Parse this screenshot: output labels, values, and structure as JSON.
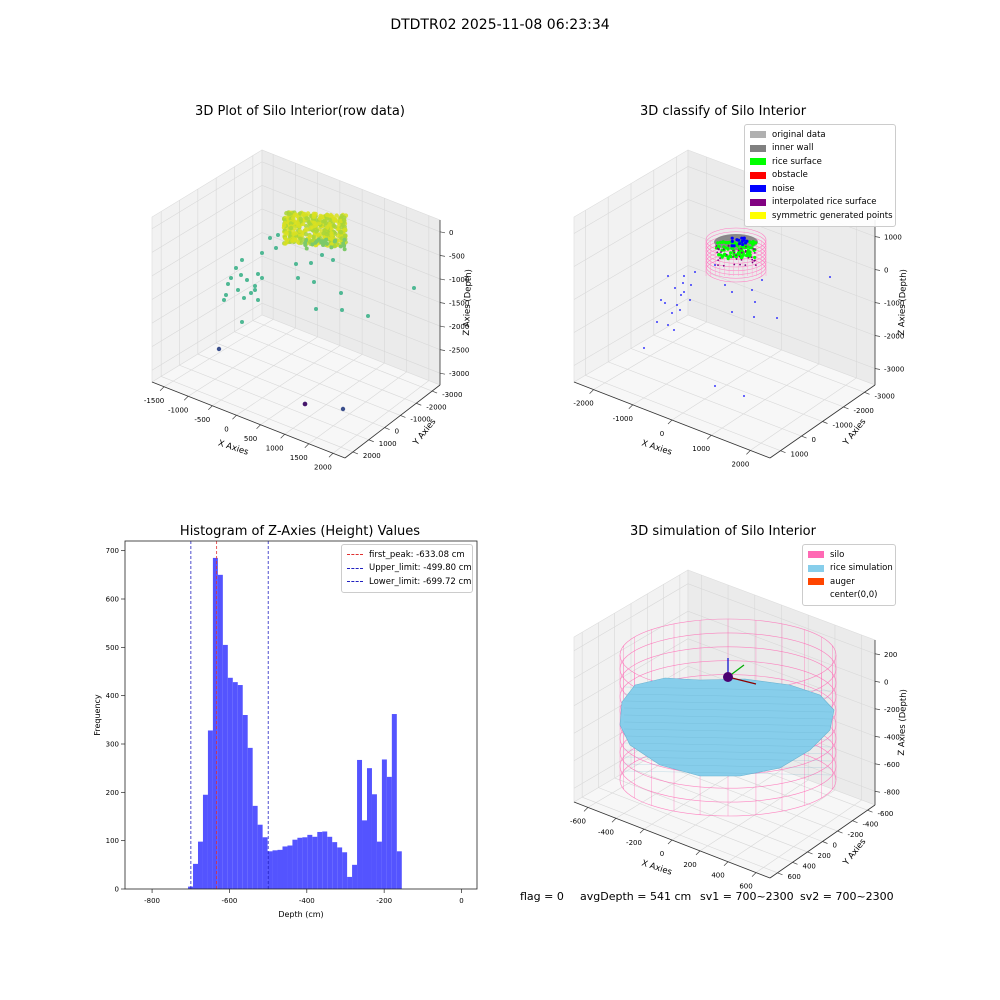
{
  "suptitle": "DTDTR02 2025-11-08 06:23:34",
  "footer": {
    "flag": "flag = 0",
    "avg_depth": "avgDepth = 541 cm",
    "sv1": "sv1 = 700~2300",
    "sv2": "sv2 = 700~2300"
  },
  "chart_data": [
    {
      "type": "scatter",
      "title": "3D Plot of Silo Interior(row data)",
      "xlabel": "X Axies",
      "ylabel": "Y Axies",
      "zlabel": "Z Axies (Depth)",
      "x_ticks": [
        "-1500",
        "-1000",
        "-500",
        "0",
        "500",
        "1000",
        "1500",
        "2000"
      ],
      "y_ticks": [
        "-3000",
        "-2000",
        "-1000",
        "0",
        "1000",
        "2000"
      ],
      "z_ticks": [
        "0",
        "-500",
        "-1000",
        "-1500",
        "-2000",
        "-2500",
        "-3000"
      ],
      "colors": {
        "high": "#d9e021",
        "mid": "#4fb894",
        "low": "#3b4f8c",
        "deep": "#46166b"
      }
    },
    {
      "type": "scatter",
      "title": "3D classify of Silo Interior",
      "xlabel": "X Axies",
      "ylabel": "Y Axies",
      "zlabel": "Z Axies (Depth)",
      "x_ticks": [
        "-2000",
        "-1000",
        "0",
        "1000",
        "2000"
      ],
      "y_ticks": [
        "-3000",
        "-2000",
        "-1000",
        "0",
        "1000"
      ],
      "z_ticks": [
        "1000",
        "0",
        "-1000",
        "-2000",
        "-3000"
      ],
      "legend": [
        {
          "label": "original data",
          "color": "#b0b0b0"
        },
        {
          "label": "inner wall",
          "color": "#808080"
        },
        {
          "label": "rice surface",
          "color": "#00ff00"
        },
        {
          "label": "obstacle",
          "color": "#ff0000"
        },
        {
          "label": "noise",
          "color": "#0000ff"
        },
        {
          "label": "interpolated rice surface",
          "color": "#800080"
        },
        {
          "label": "symmetric generated points",
          "color": "#ffff00"
        }
      ]
    },
    {
      "type": "bar",
      "title": "Histogram of Z-Axies (Height) Values",
      "xlabel": "Depth (cm)",
      "ylabel": "Frequency",
      "xlim": [
        -870,
        40
      ],
      "ylim": [
        0,
        720
      ],
      "bin_start": -707,
      "bin_width": 12.85,
      "values": [
        5,
        52,
        98,
        195,
        328,
        685,
        650,
        505,
        437,
        428,
        422,
        360,
        292,
        172,
        133,
        107,
        78,
        80,
        81,
        88,
        90,
        102,
        106,
        107,
        112,
        108,
        118,
        119,
        108,
        97,
        86,
        76,
        25,
        50,
        267,
        142,
        250,
        196,
        98,
        268,
        232,
        362,
        78
      ],
      "x_ticks": [
        -800,
        -600,
        -400,
        -200,
        0
      ],
      "y_ticks": [
        0,
        100,
        200,
        300,
        400,
        500,
        600,
        700
      ],
      "bar_color": "#4b4bff",
      "vlines": [
        {
          "label": "first_peak: -633.08 cm",
          "x": -633.08,
          "color": "#e03030"
        },
        {
          "label": "Upper_limit: -499.80 cm",
          "x": -499.8,
          "color": "#2020c0"
        },
        {
          "label": "Lower_limit: -699.72 cm",
          "x": -699.72,
          "color": "#2020c0"
        }
      ]
    },
    {
      "type": "area",
      "title": "3D simulation of Silo Interior",
      "xlabel": "X Axies",
      "ylabel": "Y Axies",
      "zlabel": "Z Axies (Depth)",
      "x_ticks": [
        "-600",
        "-400",
        "-200",
        "0",
        "200",
        "400",
        "600"
      ],
      "y_ticks": [
        "-600",
        "-400",
        "-200",
        "0",
        "200",
        "400",
        "600"
      ],
      "z_ticks": [
        "200",
        "0",
        "-200",
        "-400",
        "-600",
        "-800"
      ],
      "legend": [
        {
          "label": "silo",
          "color": "#ff69b4"
        },
        {
          "label": "rice simulation",
          "color": "#87ceeb"
        },
        {
          "label": "auger",
          "color": "#ff4500"
        },
        {
          "label": "center(0,0)",
          "color": ""
        }
      ]
    }
  ]
}
